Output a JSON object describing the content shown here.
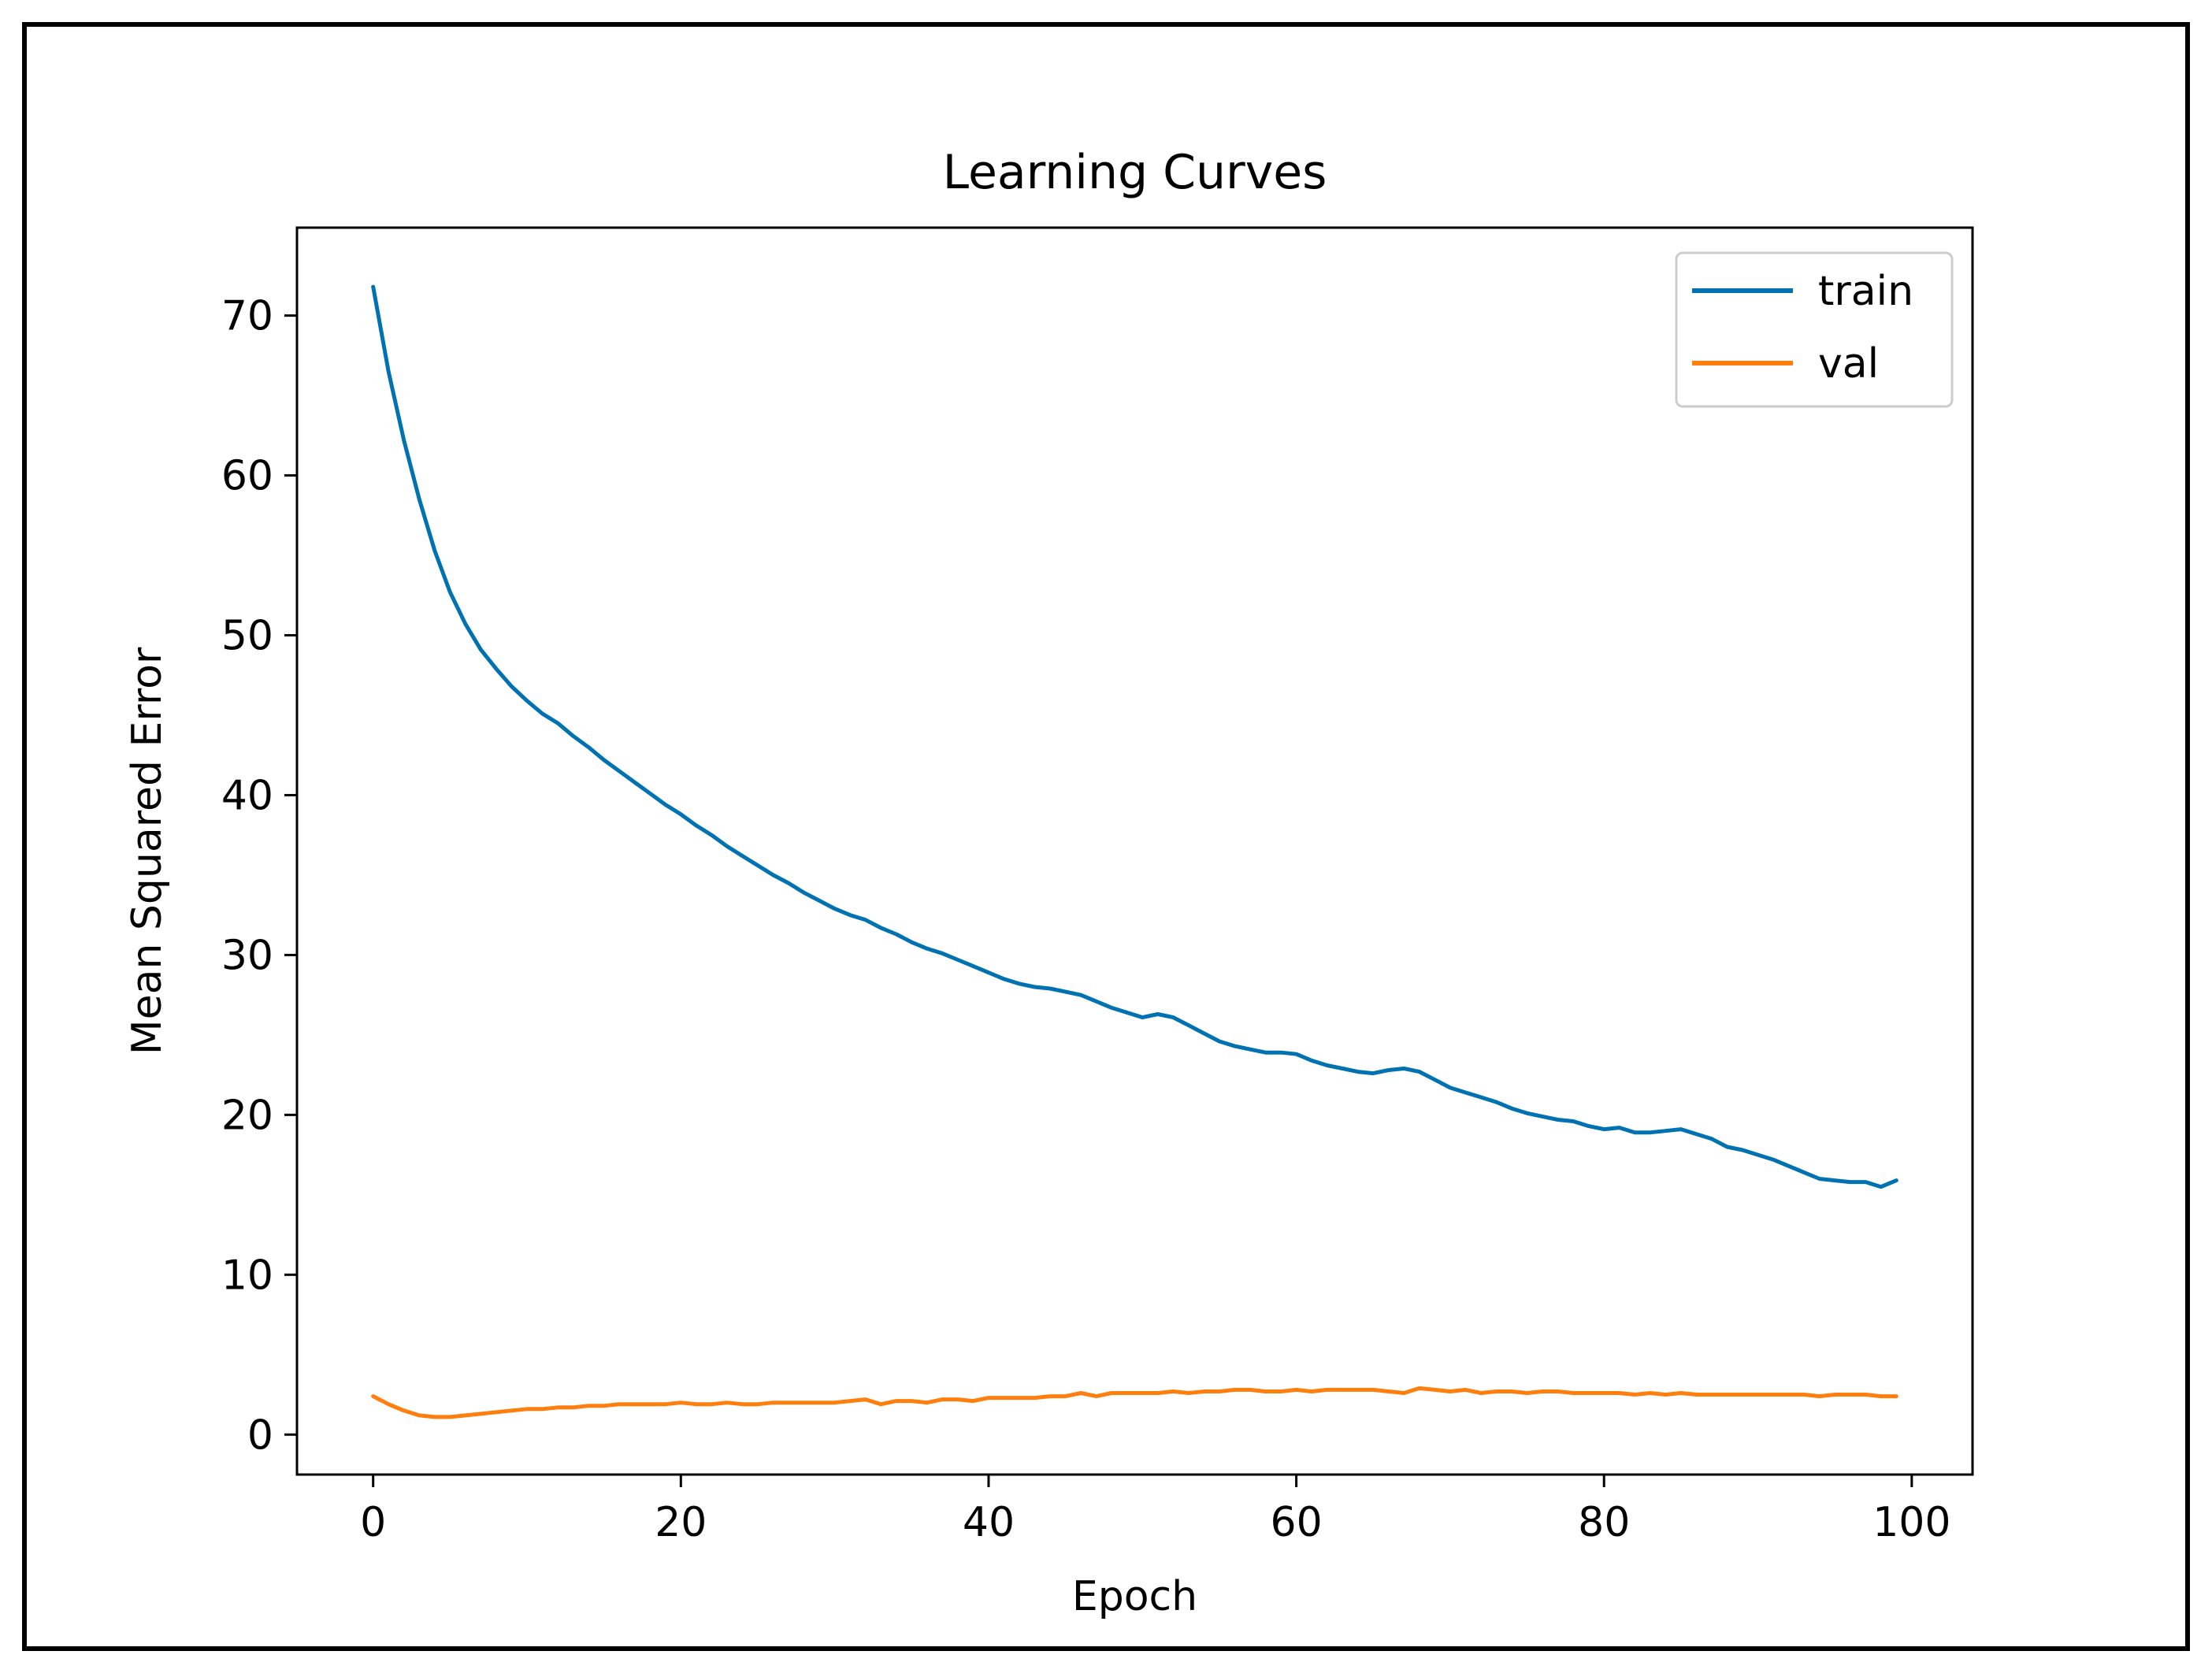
{
  "chart_data": {
    "type": "line",
    "title": "Learning Curves",
    "xlabel": "Epoch",
    "ylabel": "Mean Squared Error",
    "xlim": [
      -4.95,
      103.95
    ],
    "ylim": [
      -2.5,
      75.5
    ],
    "xticks": [
      0,
      20,
      40,
      60,
      80,
      100
    ],
    "yticks": [
      0,
      10,
      20,
      30,
      40,
      50,
      60,
      70
    ],
    "xtick_labels": [
      "0",
      "20",
      "40",
      "60",
      "80",
      "100"
    ],
    "ytick_labels": [
      "0",
      "10",
      "20",
      "30",
      "40",
      "50",
      "60",
      "70"
    ],
    "grid": false,
    "legend_position": "upper-right",
    "series": [
      {
        "name": "train",
        "color": "#0072B2",
        "x": [
          0,
          1,
          2,
          3,
          4,
          5,
          6,
          7,
          8,
          9,
          10,
          11,
          12,
          13,
          14,
          15,
          16,
          17,
          18,
          19,
          20,
          21,
          22,
          23,
          24,
          25,
          26,
          27,
          28,
          29,
          30,
          31,
          32,
          33,
          34,
          35,
          36,
          37,
          38,
          39,
          40,
          41,
          42,
          43,
          44,
          45,
          46,
          47,
          48,
          49,
          50,
          51,
          52,
          53,
          54,
          55,
          56,
          57,
          58,
          59,
          60,
          61,
          62,
          63,
          64,
          65,
          66,
          67,
          68,
          69,
          70,
          71,
          72,
          73,
          74,
          75,
          76,
          77,
          78,
          79,
          80,
          81,
          82,
          83,
          84,
          85,
          86,
          87,
          88,
          89,
          90,
          91,
          92,
          93,
          94,
          95,
          96,
          97,
          98,
          99
        ],
        "values": [
          71.8,
          66.5,
          62.2,
          58.5,
          55.3,
          52.7,
          50.7,
          49.1,
          47.9,
          46.8,
          45.9,
          45.1,
          44.5,
          43.7,
          43.0,
          42.2,
          41.5,
          40.8,
          40.1,
          39.4,
          38.8,
          38.1,
          37.5,
          36.8,
          36.2,
          35.6,
          35.0,
          34.5,
          33.9,
          33.4,
          32.9,
          32.5,
          32.2,
          31.7,
          31.3,
          30.8,
          30.4,
          30.1,
          29.7,
          29.3,
          28.9,
          28.5,
          28.2,
          28.0,
          27.9,
          27.7,
          27.5,
          27.1,
          26.7,
          26.4,
          26.1,
          26.3,
          26.1,
          25.6,
          25.1,
          24.6,
          24.3,
          24.1,
          23.9,
          23.9,
          23.8,
          23.4,
          23.1,
          22.9,
          22.7,
          22.6,
          22.8,
          22.9,
          22.7,
          22.2,
          21.7,
          21.4,
          21.1,
          20.8,
          20.4,
          20.1,
          19.9,
          19.7,
          19.6,
          19.3,
          19.1,
          19.2,
          18.9,
          18.9,
          19.0,
          19.1,
          18.8,
          18.5,
          18.0,
          17.8,
          17.5,
          17.2,
          16.8,
          16.4,
          16.0,
          15.9,
          15.8,
          15.8,
          15.5,
          15.9
        ]
      },
      {
        "name": "val",
        "color": "#FF7F0E",
        "x": [
          0,
          1,
          2,
          3,
          4,
          5,
          6,
          7,
          8,
          9,
          10,
          11,
          12,
          13,
          14,
          15,
          16,
          17,
          18,
          19,
          20,
          21,
          22,
          23,
          24,
          25,
          26,
          27,
          28,
          29,
          30,
          31,
          32,
          33,
          34,
          35,
          36,
          37,
          38,
          39,
          40,
          41,
          42,
          43,
          44,
          45,
          46,
          47,
          48,
          49,
          50,
          51,
          52,
          53,
          54,
          55,
          56,
          57,
          58,
          59,
          60,
          61,
          62,
          63,
          64,
          65,
          66,
          67,
          68,
          69,
          70,
          71,
          72,
          73,
          74,
          75,
          76,
          77,
          78,
          79,
          80,
          81,
          82,
          83,
          84,
          85,
          86,
          87,
          88,
          89,
          90,
          91,
          92,
          93,
          94,
          95,
          96,
          97,
          98,
          99
        ],
        "values": [
          2.4,
          1.9,
          1.5,
          1.2,
          1.1,
          1.1,
          1.2,
          1.3,
          1.4,
          1.5,
          1.6,
          1.6,
          1.7,
          1.7,
          1.8,
          1.8,
          1.9,
          1.9,
          1.9,
          1.9,
          2.0,
          1.9,
          1.9,
          2.0,
          1.9,
          1.9,
          2.0,
          2.0,
          2.0,
          2.0,
          2.0,
          2.1,
          2.2,
          1.9,
          2.1,
          2.1,
          2.0,
          2.2,
          2.2,
          2.1,
          2.3,
          2.3,
          2.3,
          2.3,
          2.4,
          2.4,
          2.6,
          2.4,
          2.6,
          2.6,
          2.6,
          2.6,
          2.7,
          2.6,
          2.7,
          2.7,
          2.8,
          2.8,
          2.7,
          2.7,
          2.8,
          2.7,
          2.8,
          2.8,
          2.8,
          2.8,
          2.7,
          2.6,
          2.9,
          2.8,
          2.7,
          2.8,
          2.6,
          2.7,
          2.7,
          2.6,
          2.7,
          2.7,
          2.6,
          2.6,
          2.6,
          2.6,
          2.5,
          2.6,
          2.5,
          2.6,
          2.5,
          2.5,
          2.5,
          2.5,
          2.5,
          2.5,
          2.5,
          2.5,
          2.4,
          2.5,
          2.5,
          2.5,
          2.4,
          2.4
        ]
      }
    ]
  }
}
